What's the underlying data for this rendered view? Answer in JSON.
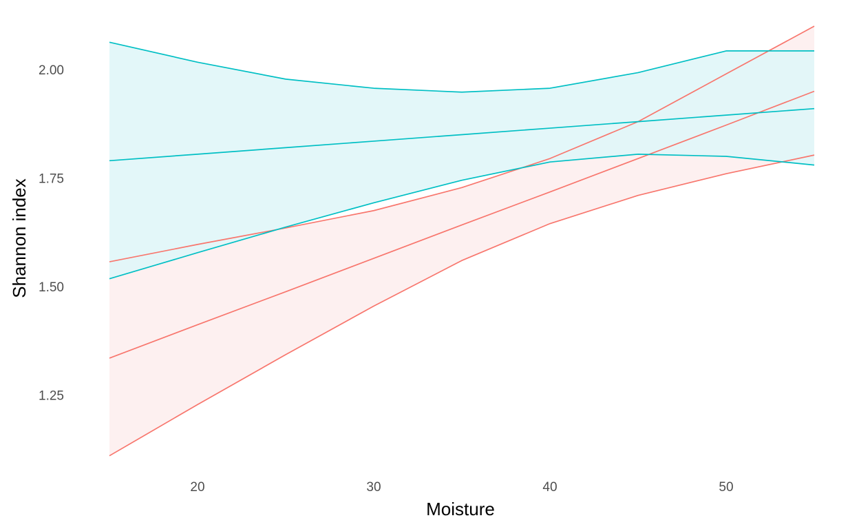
{
  "chart_data": {
    "type": "line",
    "title": "",
    "xlabel": "Moisture",
    "ylabel": "Shannon index",
    "xlim": [
      15,
      55
    ],
    "ylim": [
      1.1,
      2.1
    ],
    "x_ticks": [
      20,
      30,
      40,
      50
    ],
    "x_tick_labels": [
      "20",
      "30",
      "40",
      "50"
    ],
    "y_ticks": [
      1.25,
      1.5,
      1.75,
      2.0
    ],
    "y_tick_labels": [
      "1.25",
      "1.50",
      "1.75",
      "2.00"
    ],
    "grid": false,
    "legend": "none",
    "series": [
      {
        "color": "#F8766D",
        "x": [
          15,
          20,
          25,
          30,
          35,
          40,
          45,
          50,
          55
        ],
        "fit": [
          1.335,
          1.412,
          1.488,
          1.565,
          1.642,
          1.718,
          1.795,
          1.872,
          1.95
        ],
        "lower": [
          1.11,
          1.228,
          1.343,
          1.455,
          1.56,
          1.645,
          1.71,
          1.76,
          1.803
        ],
        "upper": [
          1.557,
          1.597,
          1.635,
          1.675,
          1.728,
          1.795,
          1.88,
          1.99,
          2.1
        ],
        "ribbon_fill": "#FDEEEE"
      },
      {
        "color": "#00BFC4",
        "x": [
          15,
          20,
          25,
          30,
          35,
          40,
          45,
          50,
          55
        ],
        "fit": [
          1.79,
          1.805,
          1.82,
          1.835,
          1.85,
          1.865,
          1.88,
          1.895,
          1.91
        ],
        "lower": [
          1.518,
          1.578,
          1.637,
          1.693,
          1.745,
          1.787,
          1.805,
          1.8,
          1.78
        ],
        "upper": [
          2.063,
          2.017,
          1.978,
          1.957,
          1.948,
          1.957,
          1.993,
          2.043,
          2.043
        ],
        "ribbon_fill": "#E0F6F8"
      }
    ]
  }
}
